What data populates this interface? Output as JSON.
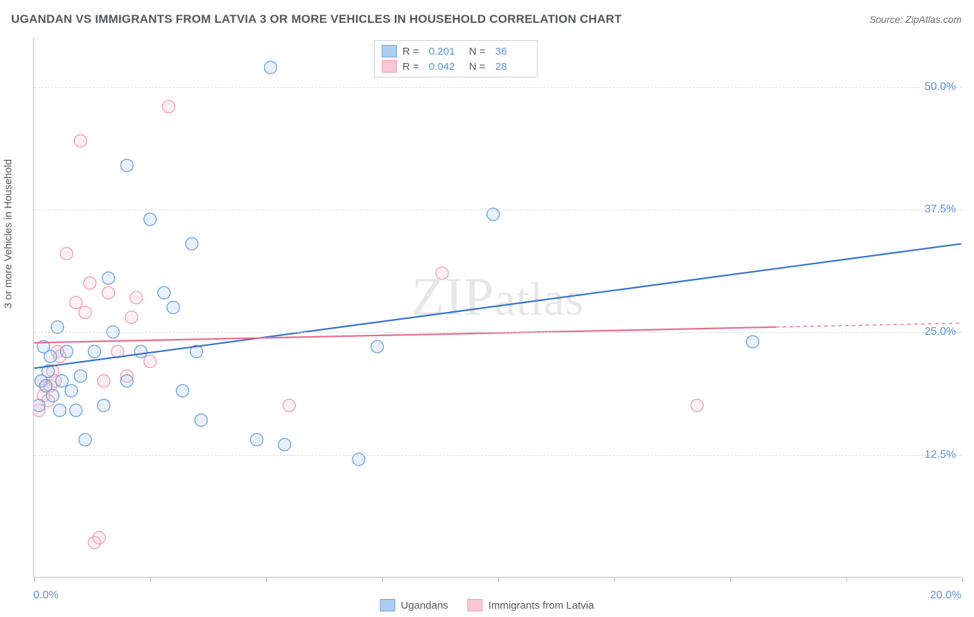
{
  "title": "UGANDAN VS IMMIGRANTS FROM LATVIA 3 OR MORE VEHICLES IN HOUSEHOLD CORRELATION CHART",
  "source": "Source: ZipAtlas.com",
  "ylabel": "3 or more Vehicles in Household",
  "watermark": "ZIPatlas",
  "chart": {
    "type": "scatter",
    "background_color": "#ffffff",
    "grid_color": "#d7d9dc",
    "border_color": "#b9bcc0",
    "xlim": [
      0,
      20
    ],
    "ylim": [
      0,
      55
    ],
    "xticks": [
      0,
      2.5,
      5,
      7.5,
      10,
      12.5,
      15,
      17.5,
      20
    ],
    "xtick_labels": {
      "0": "0.0%",
      "20": "20.0%"
    },
    "yticks": [
      12.5,
      25,
      37.5,
      50
    ],
    "ytick_labels": [
      "12.5%",
      "25.0%",
      "37.5%",
      "50.0%"
    ],
    "axis_label_color": "#5a8fd6",
    "axis_label_fontsize": 16,
    "text_color": "#54575a",
    "marker_radius": 9,
    "marker_stroke_width": 1.4,
    "marker_fill_opacity": 0.28,
    "line_width": 2.2
  },
  "series": {
    "ugandans": {
      "label": "Ugandans",
      "color_fill": "#aecdf0",
      "color_stroke": "#6fa3dd",
      "line_color": "#3470cf",
      "R": "0.201",
      "N": "36",
      "points": [
        [
          0.1,
          17.5
        ],
        [
          0.15,
          20.0
        ],
        [
          0.2,
          23.5
        ],
        [
          0.25,
          19.5
        ],
        [
          0.3,
          21.0
        ],
        [
          0.35,
          22.5
        ],
        [
          0.4,
          18.5
        ],
        [
          0.5,
          25.5
        ],
        [
          0.55,
          17.0
        ],
        [
          0.6,
          20.0
        ],
        [
          0.7,
          23.0
        ],
        [
          0.8,
          19.0
        ],
        [
          0.9,
          17.0
        ],
        [
          1.0,
          20.5
        ],
        [
          1.1,
          14.0
        ],
        [
          1.3,
          23.0
        ],
        [
          1.5,
          17.5
        ],
        [
          1.6,
          30.5
        ],
        [
          1.7,
          25.0
        ],
        [
          2.0,
          42.0
        ],
        [
          2.3,
          23.0
        ],
        [
          2.5,
          36.5
        ],
        [
          2.8,
          29.0
        ],
        [
          3.0,
          27.5
        ],
        [
          3.2,
          19.0
        ],
        [
          3.4,
          34.0
        ],
        [
          3.5,
          23.0
        ],
        [
          3.6,
          16.0
        ],
        [
          4.8,
          14.0
        ],
        [
          5.1,
          52.0
        ],
        [
          5.4,
          13.5
        ],
        [
          7.0,
          12.0
        ],
        [
          7.4,
          23.5
        ],
        [
          9.9,
          37.0
        ],
        [
          15.5,
          24.0
        ],
        [
          2.0,
          20.0
        ]
      ],
      "trend": {
        "x1": 0,
        "y1": 21.3,
        "x2": 20,
        "y2": 34.0
      }
    },
    "latvia": {
      "label": "Immigrants from Latvia",
      "color_fill": "#f7c8d4",
      "color_stroke": "#ef9fb4",
      "line_color": "#e76b8b",
      "R": "0.042",
      "N": "28",
      "points": [
        [
          0.1,
          17.0
        ],
        [
          0.15,
          20.0
        ],
        [
          0.2,
          18.5
        ],
        [
          0.25,
          19.5
        ],
        [
          0.3,
          18.0
        ],
        [
          0.35,
          19.5
        ],
        [
          0.4,
          21.0
        ],
        [
          0.45,
          20.0
        ],
        [
          0.5,
          23.0
        ],
        [
          0.55,
          22.5
        ],
        [
          0.7,
          33.0
        ],
        [
          0.9,
          28.0
        ],
        [
          1.0,
          44.5
        ],
        [
          1.1,
          27.0
        ],
        [
          1.2,
          30.0
        ],
        [
          1.3,
          3.5
        ],
        [
          1.4,
          4.0
        ],
        [
          1.6,
          29.0
        ],
        [
          1.8,
          23.0
        ],
        [
          2.0,
          20.5
        ],
        [
          2.1,
          26.5
        ],
        [
          2.2,
          28.5
        ],
        [
          2.5,
          22.0
        ],
        [
          2.9,
          48.0
        ],
        [
          5.5,
          17.5
        ],
        [
          8.8,
          31.0
        ],
        [
          14.3,
          17.5
        ],
        [
          1.5,
          20.0
        ]
      ],
      "trend": {
        "x1": 0,
        "y1": 23.9,
        "x2": 16.0,
        "y2": 25.5
      },
      "trend_dash": {
        "x1": 16.0,
        "y1": 25.5,
        "x2": 20,
        "y2": 25.9
      }
    }
  },
  "legend_top": {
    "r_label": "R  =",
    "n_label": "N  ="
  }
}
